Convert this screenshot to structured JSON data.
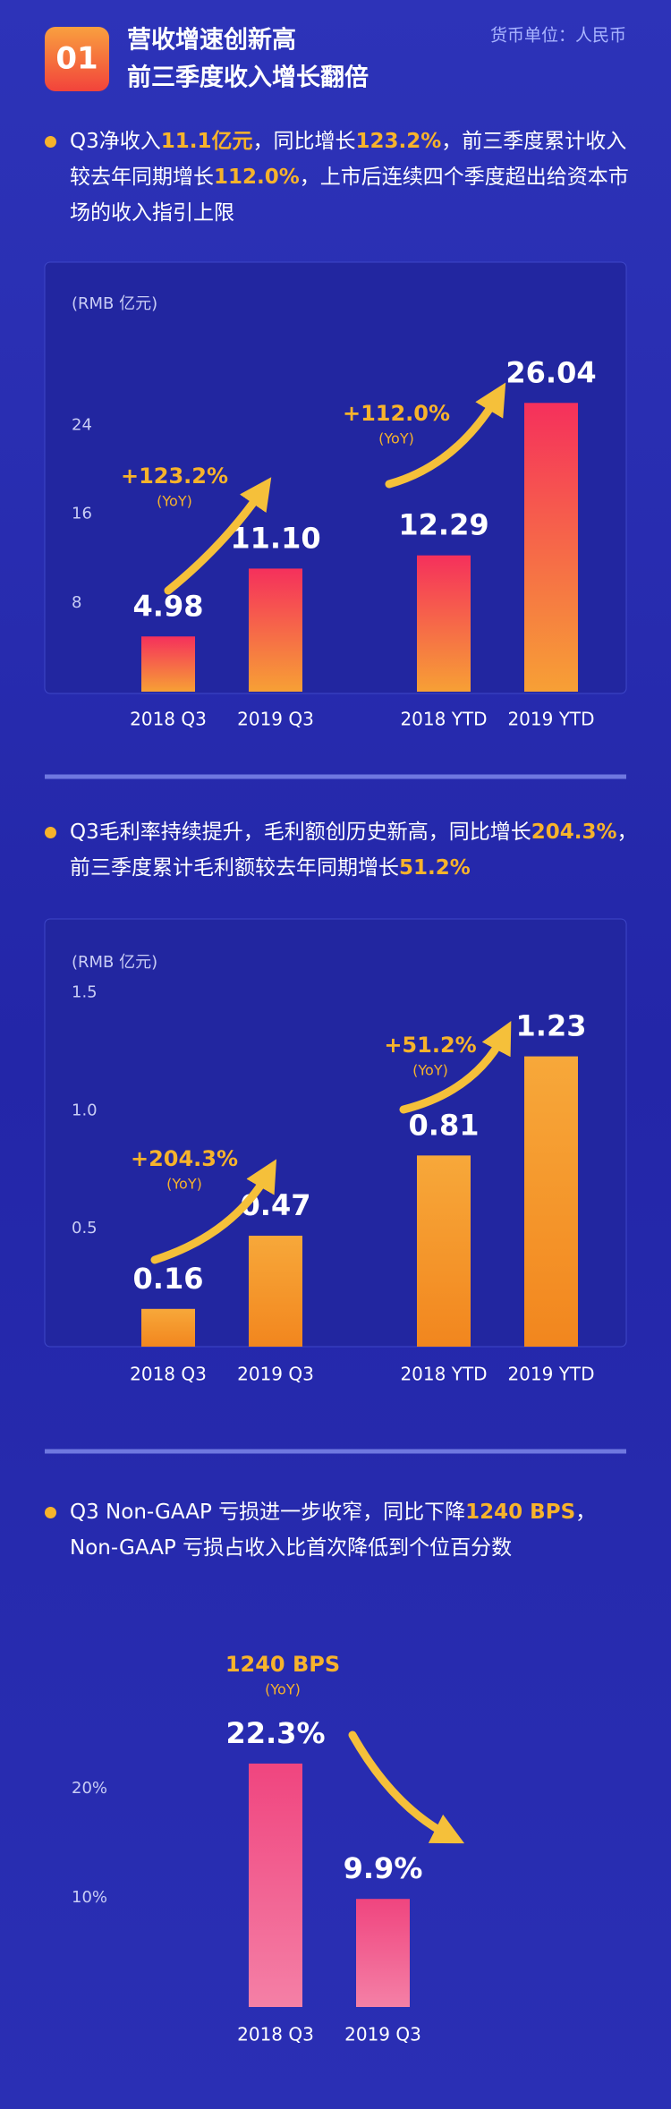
{
  "header": {
    "badge": "01",
    "title": [
      "营收增速创新高",
      "前三季度收入增长翻倍"
    ],
    "unit": "货币单位：人民币"
  },
  "sections": [
    {
      "text": [
        {
          "text": "Q3净收入"
        },
        {
          "text": "11.1亿元",
          "highlight": true
        },
        {
          "text": "，同比增长"
        },
        {
          "text": "123.2%",
          "highlight": true
        },
        {
          "text": "，前三季度累计收入较去年同期增长"
        },
        {
          "text": "112.0%",
          "highlight": true
        },
        {
          "text": "，上市后连续四个季度超出给资本市场的收入指引上限"
        }
      ]
    },
    {
      "text": [
        {
          "text": "Q3毛利率持续提升，毛利额创历史新高，同比增长"
        },
        {
          "text": "204.3%",
          "highlight": true
        },
        {
          "text": "，前三季度累计毛利额较去年同期增长"
        },
        {
          "text": "51.2%",
          "highlight": true
        }
      ]
    },
    {
      "text": [
        {
          "text": "Q3 Non-GAAP 亏损进一步收窄，同比下降"
        },
        {
          "text": "1240 BPS",
          "highlight": true
        },
        {
          "text": "，Non-GAAP 亏损占收入比首次降低到个位百分数"
        }
      ]
    }
  ],
  "chart_data": [
    {
      "type": "bar",
      "y_label": "(RMB 亿元)",
      "categories": [
        "2018 Q3",
        "2019 Q3",
        "2018 YTD",
        "2019 YTD"
      ],
      "values": [
        4.98,
        11.1,
        12.29,
        26.04
      ],
      "value_labels": [
        "4.98",
        "11.10",
        "12.29",
        "26.04"
      ],
      "colors": [
        "#f5305c",
        "#f7a035"
      ],
      "ylim": [
        0,
        28
      ],
      "yticks": [
        8,
        16,
        24
      ],
      "annotations": [
        {
          "text": "+123.2%",
          "sub": "(YoY)"
        },
        {
          "text": "+112.0%",
          "sub": "(YoY)"
        }
      ]
    },
    {
      "type": "bar",
      "y_label": "(RMB 亿元)",
      "categories": [
        "2018 Q3",
        "2019 Q3",
        "2018 YTD",
        "2019 YTD"
      ],
      "values": [
        0.16,
        0.47,
        0.81,
        1.23
      ],
      "colors": [
        "#f7a83a",
        "#f2861e"
      ],
      "ylim": [
        0,
        1.6
      ],
      "yticks": [
        0.5,
        {
          "value": 1,
          "label": "1.0"
        },
        1.5
      ],
      "annotations": [
        {
          "text": "+204.3%",
          "sub": "(YoY)"
        },
        {
          "text": "+51.2%",
          "sub": "(YoY)"
        }
      ]
    },
    {
      "type": "bar",
      "categories": [
        "2018 Q3",
        "2019 Q3"
      ],
      "values": [
        22.3,
        9.9
      ],
      "value_labels": [
        "22.3%",
        "9.9%"
      ],
      "colors": [
        "#f0457f",
        "#f480a6"
      ],
      "ylim": [
        0,
        30
      ],
      "yticks": [
        {
          "value": 10,
          "label": "10%"
        },
        {
          "value": 20,
          "label": "20%"
        }
      ],
      "annotations": [
        {
          "text": "1240 BPS",
          "sub": "(YoY)"
        }
      ]
    }
  ]
}
